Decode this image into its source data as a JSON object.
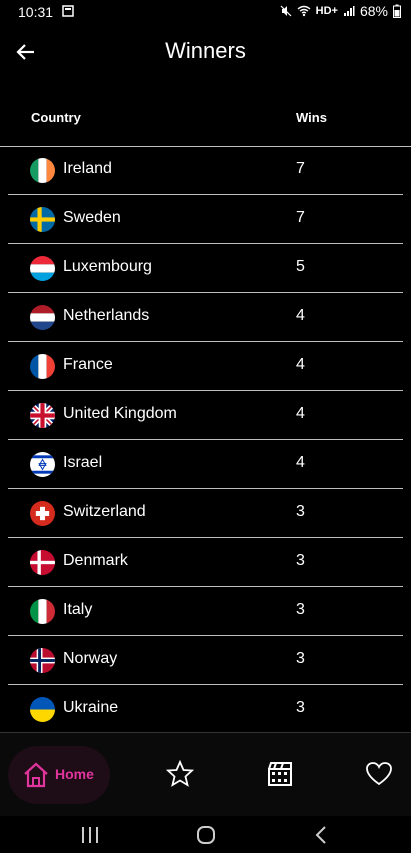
{
  "status_bar": {
    "time": "10:31",
    "network": "HD+",
    "battery": "68%"
  },
  "header": {
    "title": "Winners",
    "back_icon": "arrow-left-icon"
  },
  "table": {
    "columns": [
      "Country",
      "Wins"
    ],
    "rows": [
      {
        "country": "Ireland",
        "wins": "7",
        "flag": "ireland"
      },
      {
        "country": "Sweden",
        "wins": "7",
        "flag": "sweden"
      },
      {
        "country": "Luxembourg",
        "wins": "5",
        "flag": "luxembourg"
      },
      {
        "country": "Netherlands",
        "wins": "4",
        "flag": "netherlands"
      },
      {
        "country": "France",
        "wins": "4",
        "flag": "france"
      },
      {
        "country": "United Kingdom",
        "wins": "4",
        "flag": "united-kingdom"
      },
      {
        "country": "Israel",
        "wins": "4",
        "flag": "israel"
      },
      {
        "country": "Switzerland",
        "wins": "3",
        "flag": "switzerland"
      },
      {
        "country": "Denmark",
        "wins": "3",
        "flag": "denmark"
      },
      {
        "country": "Italy",
        "wins": "3",
        "flag": "italy"
      },
      {
        "country": "Norway",
        "wins": "3",
        "flag": "norway"
      },
      {
        "country": "Ukraine",
        "wins": "3",
        "flag": "ukraine"
      }
    ]
  },
  "bottom_nav": {
    "home_label": "Home",
    "items": [
      "home-icon",
      "star-icon",
      "film-icon",
      "heart-icon"
    ]
  },
  "colors": {
    "accent": "#e0359c",
    "background": "#000000",
    "divider": "#bdbdbd"
  }
}
